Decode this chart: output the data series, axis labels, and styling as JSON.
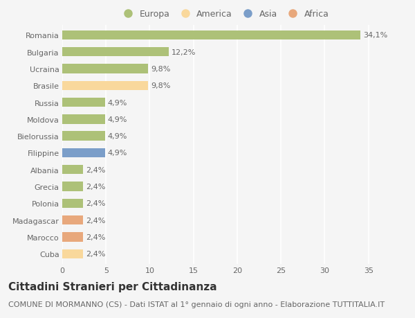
{
  "countries": [
    "Romania",
    "Bulgaria",
    "Ucraina",
    "Brasile",
    "Russia",
    "Moldova",
    "Bielorussia",
    "Filippine",
    "Albania",
    "Grecia",
    "Polonia",
    "Madagascar",
    "Marocco",
    "Cuba"
  ],
  "values": [
    34.1,
    12.2,
    9.8,
    9.8,
    4.9,
    4.9,
    4.9,
    4.9,
    2.4,
    2.4,
    2.4,
    2.4,
    2.4,
    2.4
  ],
  "labels": [
    "34,1%",
    "12,2%",
    "9,8%",
    "9,8%",
    "4,9%",
    "4,9%",
    "4,9%",
    "4,9%",
    "2,4%",
    "2,4%",
    "2,4%",
    "2,4%",
    "2,4%",
    "2,4%"
  ],
  "colors": [
    "#adc178",
    "#adc178",
    "#adc178",
    "#f9d89c",
    "#adc178",
    "#adc178",
    "#adc178",
    "#7b9ec9",
    "#adc178",
    "#adc178",
    "#adc178",
    "#e8a87c",
    "#e8a87c",
    "#f9d89c"
  ],
  "legend": [
    {
      "label": "Europa",
      "color": "#adc178"
    },
    {
      "label": "America",
      "color": "#f9d89c"
    },
    {
      "label": "Asia",
      "color": "#7b9ec9"
    },
    {
      "label": "Africa",
      "color": "#e8a87c"
    }
  ],
  "xlim": [
    0,
    37
  ],
  "xticks": [
    0,
    5,
    10,
    15,
    20,
    25,
    30,
    35
  ],
  "title": "Cittadini Stranieri per Cittadinanza",
  "subtitle": "COMUNE DI MORMANNO (CS) - Dati ISTAT al 1° gennaio di ogni anno - Elaborazione TUTTITALIA.IT",
  "background_color": "#f5f5f5",
  "grid_color": "#ffffff",
  "bar_height": 0.55,
  "title_fontsize": 11,
  "subtitle_fontsize": 8,
  "tick_fontsize": 8,
  "label_fontsize": 8
}
